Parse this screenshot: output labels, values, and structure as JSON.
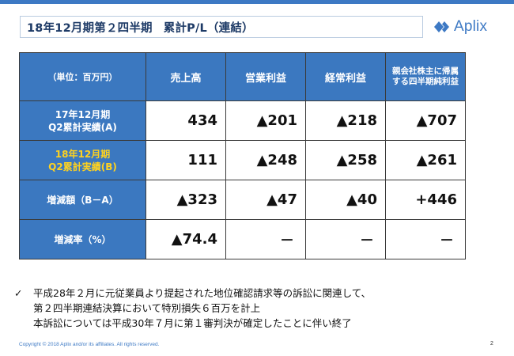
{
  "slide": {
    "title_period": "18年12月期第２四半期",
    "title_subject": "累計P/L（連結）",
    "logo_text": "Aplix",
    "brand_color": "#3d79c4"
  },
  "table": {
    "header": {
      "unit": "（単位：百万円）",
      "columns": [
        "売上高",
        "営業利益",
        "経常利益",
        "親会社株主に帰属する四半期純利益"
      ]
    },
    "rows": [
      {
        "label_line1": "17年12月期",
        "label_line2": "Q2累計実績(A)",
        "highlight": false,
        "values": [
          "434",
          "▲201",
          "▲218",
          "▲707"
        ]
      },
      {
        "label_line1": "18年12月期",
        "label_line2": "Q2累計実績(B)",
        "highlight": true,
        "values": [
          "111",
          "▲248",
          "▲258",
          "▲261"
        ]
      },
      {
        "label_line1": "増減額（B－A）",
        "label_line2": "",
        "highlight": false,
        "values": [
          "▲323",
          "▲47",
          "▲40",
          "+446"
        ]
      },
      {
        "label_line1": "増減率（%）",
        "label_line2": "",
        "highlight": false,
        "values": [
          "▲74.4",
          "－",
          "－",
          "－"
        ]
      }
    ]
  },
  "note": {
    "bullet": "✓",
    "lines": [
      "平成28年２月に元従業員より提起された地位確認請求等の訴訟に関連して、",
      "第２四半期連結決算において特別損失６百万を計上",
      "本訴訟については平成30年７月に第１審判決が確定したことに伴い終了"
    ]
  },
  "footer": {
    "copyright": "Copyright © 2018  Aplix and/or its affiliates. All rights reserved.",
    "page_number": "2"
  }
}
